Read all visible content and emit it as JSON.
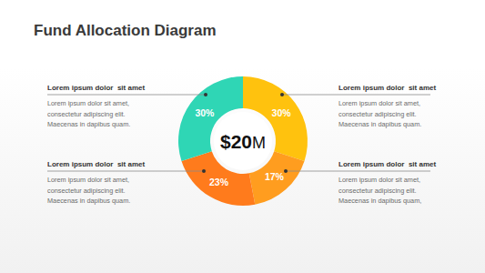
{
  "chart_data": {
    "type": "pie",
    "title": "Fund Allocation Diagram",
    "center_label": "$20M",
    "categories": [
      "Lorem ipsum dolor  sit amet",
      "Lorem ipsum dolor  sit amet",
      "Lorem ipsum dolor  sit amet",
      "Lorem ipsum dolor  sit amet"
    ],
    "values": [
      30,
      17,
      23,
      30
    ],
    "value_labels": [
      "30%",
      "17%",
      "23%",
      "30%"
    ],
    "colors": [
      "#ffc20e",
      "#ff9d1f",
      "#ff7b1c",
      "#2fd6b5"
    ],
    "data_labels": true,
    "annotations": [
      [
        "Lorem ipsum dolor sit amet,",
        "consectetur adipiscing elit.",
        "Maecenas in dapibus quam."
      ],
      [
        "Lorem ipsum dolor sit amet,",
        "consectetur adipiscing elit.",
        "Maecenas in dapibus quam,"
      ],
      [
        "Lorem ipsum dolor sit amet,",
        "consectetur adipiscing elit.",
        "Maecenas in dapibus quam."
      ],
      [
        "Lorem ipsum dolor sit amet,",
        "consectetur adipiscing elit.",
        "Maecenas in dapibus quam."
      ]
    ]
  }
}
